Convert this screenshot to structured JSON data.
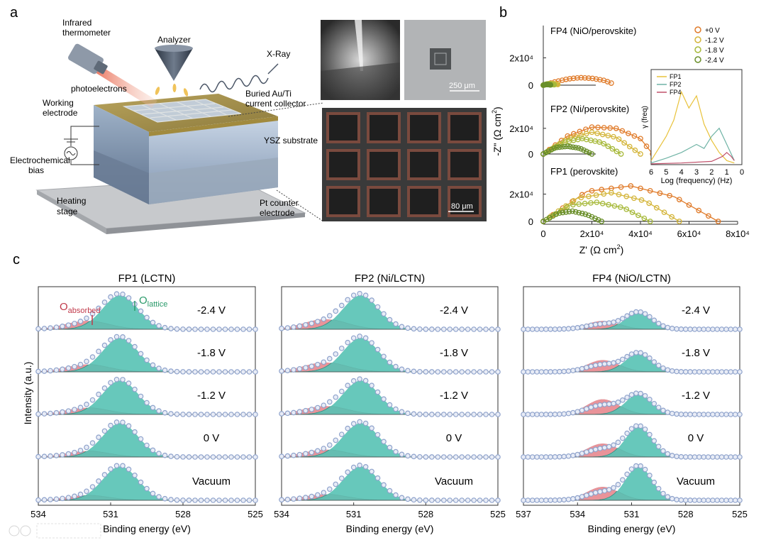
{
  "panel_labels": {
    "a": "a",
    "b": "b",
    "c": "c"
  },
  "panel_a": {
    "labels": {
      "infrared": "Infrared",
      "thermometer": "thermometer",
      "analyzer": "Analyzer",
      "xray": "X-Ray",
      "photoelectrons": "photoelectrons",
      "buried": "Buried Au/Ti",
      "collector": "current collector",
      "working": "Working",
      "electrode": "electrode",
      "ysz": "YSZ substrate",
      "electrochem": "Electrochemical",
      "bias": "bias",
      "heating": "Heating",
      "stage": "stage",
      "pt_counter": "Pt counter",
      "pt_electrode": "electrode"
    },
    "scale_250": "250 μm",
    "scale_80": "80 μm"
  },
  "panel_b": {
    "ylabel": "-Z\" (Ω cm²)",
    "xlabel": "Z' (Ω cm²)",
    "ylabel_prefix": "-Z\" (",
    "xlabel_prefix": "Z' (",
    "omega": "Ω cm",
    "sup2": "2",
    "close": ")",
    "x_ticks": [
      "0",
      "2x10⁴",
      "4x10⁴",
      "6x10⁴",
      "8x10⁴"
    ],
    "y_tick_zero": "0",
    "y_tick_top": "2x10⁴",
    "titles": [
      "FP4 (NiO/perovskite)",
      "FP2 (Ni/perovskite)",
      "FP1 (perovskite)"
    ],
    "legend": [
      "+0 V",
      "-1.2 V",
      "-1.8 V",
      "-2.4 V"
    ],
    "colors": {
      "0": "#e07b2a",
      "1.2": "#d4b53a",
      "1.8": "#a7b93a",
      "2.4": "#6a8f2a"
    },
    "inset": {
      "legend": [
        "FP1",
        "FP2",
        "FP4"
      ],
      "colors": [
        "#e8c23a",
        "#6fb3a5",
        "#c0506a"
      ],
      "ylabel": "γ (freq)",
      "xlabel": "Log (frequency) (Hz)",
      "x_ticks": [
        "6",
        "5",
        "4",
        "3",
        "2",
        "1",
        "0"
      ]
    }
  },
  "panel_c": {
    "ylabel": "Intensity (a.u.)",
    "xlabel": "Binding energy (eV)",
    "o_absorbed_main": "O",
    "o_absorbed_sub": "absorbed",
    "o_lattice_main": "O",
    "o_lattice_sub": "lattice",
    "conditions": [
      "-2.4 V",
      "-1.8 V",
      "-1.2 V",
      "0 V",
      "Vacuum"
    ],
    "colors": {
      "lattice": "#56c2b4",
      "absorbed": "#e58087",
      "points": "#8fa3cc",
      "fit": "#333333"
    },
    "panels": [
      {
        "title": "FP1 (LCTN)",
        "x_ticks": [
          "534",
          "531",
          "528",
          "525"
        ]
      },
      {
        "title": "FP2 (Ni/LCTN)",
        "x_ticks": [
          "534",
          "531",
          "528",
          "525"
        ]
      },
      {
        "title": "FP4 (NiO/LCTN)",
        "x_ticks": [
          "537",
          "534",
          "531",
          "528",
          "525"
        ]
      }
    ]
  },
  "chart_data": [
    {
      "type": "scatter",
      "title": "FP4 (NiO/perovskite)",
      "xlabel": "Z' (Ω cm²)",
      "ylabel": "-Z\" (Ω cm²)",
      "xlim": [
        0,
        80000
      ],
      "ylim": [
        0,
        30000
      ],
      "series": [
        {
          "name": "+0 V",
          "x": [
            0,
            5000,
            10000,
            15000,
            20000,
            25000,
            28000
          ],
          "y": [
            0,
            2500,
            4500,
            5500,
            5000,
            3500,
            1500
          ]
        },
        {
          "name": "-1.2 V",
          "x": [
            0,
            2000,
            4000,
            6000
          ],
          "y": [
            0,
            1000,
            1200,
            500
          ]
        },
        {
          "name": "-1.8 V",
          "x": [
            0,
            1500,
            3000,
            4500
          ],
          "y": [
            0,
            800,
            900,
            300
          ]
        },
        {
          "name": "-2.4 V",
          "x": [
            0,
            1000,
            2000,
            3000
          ],
          "y": [
            0,
            500,
            500,
            200
          ]
        }
      ]
    },
    {
      "type": "scatter",
      "title": "FP2 (Ni/perovskite)",
      "xlabel": "Z' (Ω cm²)",
      "ylabel": "-Z\" (Ω cm²)",
      "xlim": [
        0,
        80000
      ],
      "ylim": [
        0,
        30000
      ],
      "series": [
        {
          "name": "+0 V",
          "x": [
            0,
            10000,
            20000,
            30000,
            40000,
            45000
          ],
          "y": [
            0,
            14000,
            21000,
            20000,
            12000,
            0
          ]
        },
        {
          "name": "-1.2 V",
          "x": [
            0,
            10000,
            20000,
            30000,
            40000
          ],
          "y": [
            0,
            12000,
            17000,
            13000,
            0
          ]
        },
        {
          "name": "-1.8 V",
          "x": [
            0,
            8000,
            16000,
            24000,
            32000
          ],
          "y": [
            0,
            9000,
            12000,
            9000,
            0
          ]
        },
        {
          "name": "-2.4 V",
          "x": [
            0,
            5000,
            10000,
            15000,
            20000
          ],
          "y": [
            0,
            5000,
            6000,
            4500,
            0
          ]
        }
      ]
    },
    {
      "type": "scatter",
      "title": "FP1 (perovskite)",
      "xlabel": "Z' (Ω cm²)",
      "ylabel": "-Z\" (Ω cm²)",
      "xlim": [
        0,
        80000
      ],
      "ylim": [
        0,
        30000
      ],
      "series": [
        {
          "name": "+0 V",
          "x": [
            0,
            18000,
            36000,
            54000,
            72000
          ],
          "y": [
            0,
            22000,
            26000,
            18000,
            0
          ]
        },
        {
          "name": "-1.2 V",
          "x": [
            0,
            14000,
            28000,
            42000,
            56000
          ],
          "y": [
            0,
            17000,
            21000,
            15000,
            0
          ]
        },
        {
          "name": "-1.8 V",
          "x": [
            0,
            11000,
            22000,
            33000,
            44000
          ],
          "y": [
            0,
            12000,
            14000,
            10000,
            0
          ]
        },
        {
          "name": "-2.4 V",
          "x": [
            0,
            6000,
            12000,
            18000,
            24000
          ],
          "y": [
            0,
            6000,
            7500,
            5000,
            0
          ]
        }
      ]
    },
    {
      "type": "line",
      "title": "",
      "xlabel": "Log (frequency) (Hz)",
      "ylabel": "γ (freq)",
      "xlim": [
        6,
        0
      ],
      "series": [
        {
          "name": "FP1",
          "x": [
            6,
            5.5,
            5,
            4.5,
            4,
            3.5,
            3,
            2.5,
            2,
            1.5,
            1,
            0.5
          ],
          "y": [
            0.05,
            0.2,
            0.35,
            0.55,
            0.9,
            0.7,
            0.85,
            0.5,
            0.3,
            0.15,
            0.05,
            0.02
          ]
        },
        {
          "name": "FP2",
          "x": [
            6,
            5,
            4,
            3,
            2.5,
            2,
            1.5,
            1,
            0.5
          ],
          "y": [
            0.02,
            0.08,
            0.15,
            0.25,
            0.2,
            0.35,
            0.45,
            0.25,
            0.05
          ]
        },
        {
          "name": "FP4",
          "x": [
            6,
            4,
            2,
            1.3,
            1,
            0.7,
            0.5
          ],
          "y": [
            0.01,
            0.02,
            0.04,
            0.1,
            0.15,
            0.1,
            0.05
          ]
        }
      ]
    },
    {
      "type": "area",
      "title": "FP1 (LCTN)",
      "xlabel": "Binding energy (eV)",
      "ylabel": "Intensity (a.u.)",
      "xlim": [
        534,
        525
      ],
      "series": [
        {
          "name": "-2.4 V",
          "lattice_center": 530.6,
          "lattice_height": 1.0,
          "absorbed_center": 532.0,
          "absorbed_height": 0.25
        },
        {
          "name": "-1.8 V",
          "lattice_center": 530.6,
          "lattice_height": 1.0,
          "absorbed_center": 532.0,
          "absorbed_height": 0.22
        },
        {
          "name": "-1.2 V",
          "lattice_center": 530.6,
          "lattice_height": 1.0,
          "absorbed_center": 532.0,
          "absorbed_height": 0.2
        },
        {
          "name": "0 V",
          "lattice_center": 530.6,
          "lattice_height": 1.0,
          "absorbed_center": 532.0,
          "absorbed_height": 0.18
        },
        {
          "name": "Vacuum",
          "lattice_center": 530.6,
          "lattice_height": 1.0,
          "absorbed_center": 532.0,
          "absorbed_height": 0.15
        }
      ]
    },
    {
      "type": "area",
      "title": "FP2 (Ni/LCTN)",
      "xlabel": "Binding energy (eV)",
      "ylabel": "Intensity (a.u.)",
      "xlim": [
        534,
        525
      ],
      "series": [
        {
          "name": "-2.4 V",
          "lattice_center": 530.7,
          "lattice_height": 1.0,
          "absorbed_center": 532.2,
          "absorbed_height": 0.3
        },
        {
          "name": "-1.8 V",
          "lattice_center": 530.7,
          "lattice_height": 1.0,
          "absorbed_center": 532.2,
          "absorbed_height": 0.28
        },
        {
          "name": "-1.2 V",
          "lattice_center": 530.7,
          "lattice_height": 1.0,
          "absorbed_center": 532.2,
          "absorbed_height": 0.25
        },
        {
          "name": "0 V",
          "lattice_center": 530.7,
          "lattice_height": 1.0,
          "absorbed_center": 532.2,
          "absorbed_height": 0.22
        },
        {
          "name": "Vacuum",
          "lattice_center": 530.7,
          "lattice_height": 1.0,
          "absorbed_center": 532.2,
          "absorbed_height": 0.18
        }
      ]
    },
    {
      "type": "area",
      "title": "FP4 (NiO/LCTN)",
      "xlabel": "Binding energy (eV)",
      "ylabel": "Intensity (a.u.)",
      "xlim": [
        537,
        525
      ],
      "series": [
        {
          "name": "-2.4 V",
          "lattice_center": 530.6,
          "lattice_height": 0.5,
          "absorbed_center": 532.6,
          "absorbed_height": 0.25
        },
        {
          "name": "-1.8 V",
          "lattice_center": 530.6,
          "lattice_height": 0.55,
          "absorbed_center": 532.6,
          "absorbed_height": 0.35
        },
        {
          "name": "-1.2 V",
          "lattice_center": 530.6,
          "lattice_height": 0.6,
          "absorbed_center": 532.6,
          "absorbed_height": 0.45
        },
        {
          "name": "0 V",
          "lattice_center": 530.6,
          "lattice_height": 0.9,
          "absorbed_center": 532.6,
          "absorbed_height": 0.4
        },
        {
          "name": "Vacuum",
          "lattice_center": 530.6,
          "lattice_height": 1.0,
          "absorbed_center": 532.6,
          "absorbed_height": 0.4
        }
      ]
    }
  ]
}
